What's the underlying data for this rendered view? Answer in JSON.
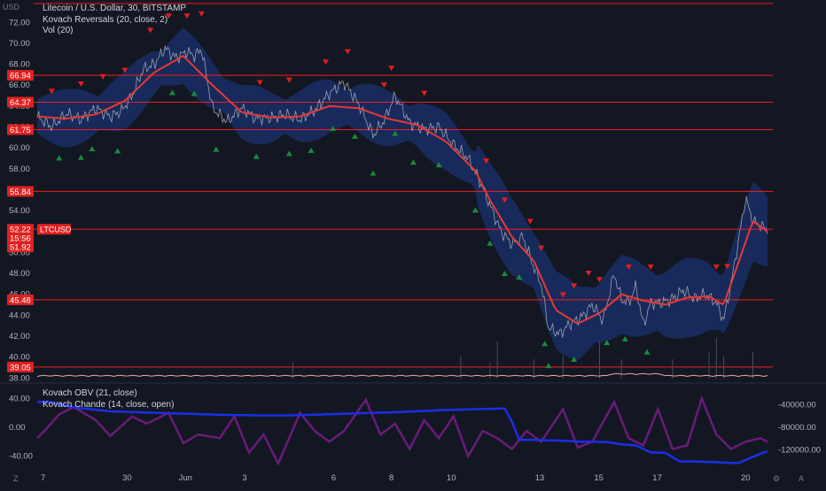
{
  "header": {
    "symbol_line": "Litecoin / U.S. Dollar, 30, BITSTAMP",
    "indicator_1": "Kovach Reversals (20, close, 2)",
    "indicator_2": "Vol (20)"
  },
  "lower_pane": {
    "indicator_1": "Kovach OBV (21, close)",
    "indicator_2": "Kovach Chande (14, close, open)"
  },
  "axis_unit": "USD",
  "corner_left": "Z",
  "corner_mid": "⚙",
  "corner_right": "A",
  "colors": {
    "background": "#131722",
    "price": "#b2b5be",
    "ma": "#e53935",
    "band": "#1e3a8a",
    "level_line": "#f01e1e",
    "up_marker": "#1b8a3c",
    "down_marker": "#e01e1e",
    "obv": "#1b2ee8",
    "chande": "#6a1b7a"
  },
  "chart_data": [
    {
      "type": "line",
      "title": "Litecoin / U.S. Dollar, 30, BITSTAMP",
      "ylabel": "USD",
      "ylim": [
        37.6,
        73.8
      ],
      "y_ticks": [
        38,
        40,
        42,
        44,
        46,
        48,
        50,
        52,
        54,
        56,
        58,
        60,
        62,
        64,
        66,
        68,
        70,
        72
      ],
      "y_tick_labels": [
        "38.00",
        "40.00",
        "42.00",
        "44.00",
        "46.00",
        "48.00",
        "50.00",
        "52.00",
        "54.00",
        "56.00",
        "58.00",
        "60.00",
        "62.00",
        "64.00",
        "66.00",
        "68.00",
        "70.00",
        "72.00"
      ],
      "x_ticks": [
        {
          "label": "7",
          "t": 0.008
        },
        {
          "label": "30",
          "t": 0.123
        },
        {
          "label": "Jun",
          "t": 0.203
        },
        {
          "label": "3",
          "t": 0.284
        },
        {
          "label": "6",
          "t": 0.406
        },
        {
          "label": "8",
          "t": 0.485
        },
        {
          "label": "10",
          "t": 0.567
        },
        {
          "label": "13",
          "t": 0.688
        },
        {
          "label": "15",
          "t": 0.769
        },
        {
          "label": "17",
          "t": 0.849
        },
        {
          "label": "20",
          "t": 0.97
        }
      ],
      "levels": [
        {
          "value": 73.8,
          "label": ""
        },
        {
          "value": 66.94,
          "label": "66.94"
        },
        {
          "value": 64.37,
          "label": "64.37"
        },
        {
          "value": 61.75,
          "label": "61.75"
        },
        {
          "value": 55.84,
          "label": "55.84"
        },
        {
          "value": 45.48,
          "label": "45.48"
        },
        {
          "value": 39.05,
          "label": "39.05"
        }
      ],
      "current_price": {
        "value": "52.22",
        "countdown": "15:56",
        "symbol": "LTCUSD",
        "ma_value": "51.92"
      },
      "series": [
        {
          "name": "Litecoin / U.S. Dollar",
          "x": [
            0.0,
            0.02,
            0.04,
            0.06,
            0.08,
            0.1,
            0.115,
            0.13,
            0.145,
            0.16,
            0.175,
            0.19,
            0.205,
            0.215,
            0.225,
            0.24,
            0.26,
            0.28,
            0.3,
            0.32,
            0.34,
            0.36,
            0.38,
            0.4,
            0.42,
            0.44,
            0.46,
            0.475,
            0.49,
            0.51,
            0.53,
            0.55,
            0.57,
            0.59,
            0.605,
            0.62,
            0.635,
            0.65,
            0.665,
            0.68,
            0.69,
            0.7,
            0.715,
            0.73,
            0.745,
            0.76,
            0.775,
            0.79,
            0.8,
            0.81,
            0.82,
            0.83,
            0.84,
            0.855,
            0.87,
            0.885,
            0.9,
            0.915,
            0.93,
            0.94,
            0.95,
            0.96,
            0.97,
            0.98,
            1.0
          ],
          "y": [
            63.0,
            62.0,
            63.3,
            62.7,
            63.8,
            63.0,
            63.5,
            65.0,
            67.5,
            68.0,
            69.5,
            68.6,
            69.2,
            68.8,
            69.4,
            63.8,
            62.5,
            63.8,
            62.8,
            62.9,
            63.2,
            62.7,
            63.6,
            65.2,
            66.3,
            64.2,
            61.2,
            62.6,
            65.0,
            62.4,
            61.8,
            62.0,
            60.3,
            59.0,
            57.0,
            54.5,
            52.0,
            50.8,
            51.5,
            48.6,
            47.0,
            42.8,
            42.2,
            43.2,
            43.8,
            45.0,
            43.5,
            48.0,
            45.5,
            45.2,
            46.8,
            43.0,
            45.2,
            45.2,
            45.6,
            46.4,
            45.6,
            46.0,
            45.2,
            43.5,
            47.0,
            51.0,
            55.2,
            53.0,
            52.2
          ]
        },
        {
          "name": "Kovach Reversals",
          "x": [
            0.0,
            0.04,
            0.08,
            0.12,
            0.16,
            0.2,
            0.24,
            0.28,
            0.32,
            0.36,
            0.4,
            0.44,
            0.48,
            0.52,
            0.56,
            0.6,
            0.62,
            0.65,
            0.68,
            0.71,
            0.74,
            0.77,
            0.8,
            0.83,
            0.86,
            0.89,
            0.92,
            0.94,
            0.96,
            0.98,
            1.0
          ],
          "y": [
            63.0,
            62.8,
            63.2,
            64.5,
            67.2,
            68.8,
            66.0,
            63.4,
            62.9,
            63.0,
            64.0,
            63.8,
            62.8,
            62.2,
            60.6,
            57.8,
            55.0,
            51.5,
            49.2,
            44.5,
            43.2,
            44.2,
            46.0,
            45.4,
            45.0,
            45.7,
            45.8,
            45.0,
            49.0,
            53.0,
            52.0
          ]
        }
      ],
      "down_markers_t": [
        0.02,
        0.06,
        0.09,
        0.12,
        0.155,
        0.18,
        0.205,
        0.225,
        0.305,
        0.345,
        0.395,
        0.425,
        0.475,
        0.485,
        0.53,
        0.615,
        0.64,
        0.675,
        0.69,
        0.72,
        0.735,
        0.755,
        0.77,
        0.81,
        0.84,
        0.93,
        0.945
      ],
      "up_markers_t": [
        0.03,
        0.06,
        0.075,
        0.11,
        0.185,
        0.215,
        0.245,
        0.3,
        0.345,
        0.375,
        0.405,
        0.435,
        0.46,
        0.49,
        0.515,
        0.55,
        0.6,
        0.62,
        0.64,
        0.66,
        0.695,
        0.7,
        0.735,
        0.78,
        0.805,
        0.835
      ],
      "volume": {
        "name": "Vol (20)",
        "spikes_t": [
          0.35,
          0.58,
          0.62,
          0.63,
          0.68,
          0.72,
          0.77,
          0.8,
          0.87,
          0.92,
          0.93,
          0.94,
          0.98
        ],
        "spikes_h": [
          0.3,
          0.5,
          0.3,
          0.9,
          0.4,
          0.5,
          0.9,
          0.4,
          0.4,
          0.6,
          1.0,
          0.5,
          0.6
        ]
      }
    },
    {
      "type": "line",
      "title": "Kovach OBV (21, close) / Kovach Chande (14, close, open)",
      "ylim_left": [
        -55,
        55
      ],
      "y_ticks_left": [
        40,
        20,
        0,
        -20,
        -40
      ],
      "y_tick_labels_left": [
        "40.00",
        "",
        "0.00",
        "",
        "-40.00"
      ],
      "ylim_right": [
        -150000,
        -10000
      ],
      "y_ticks_right": [
        -40000,
        -80000,
        -120000
      ],
      "y_tick_labels_right": [
        "-40000.00",
        "-80000.00",
        "-120000.00"
      ],
      "series": [
        {
          "name": "Kovach OBV",
          "axis": "right",
          "x": [
            0.0,
            0.02,
            0.05,
            0.1,
            0.15,
            0.2,
            0.25,
            0.3,
            0.35,
            0.4,
            0.45,
            0.5,
            0.55,
            0.6,
            0.64,
            0.65,
            0.66,
            0.68,
            0.7,
            0.72,
            0.74,
            0.78,
            0.8,
            0.82,
            0.84,
            0.86,
            0.88,
            0.9,
            0.92,
            0.94,
            0.96,
            0.98,
            1.0
          ],
          "y": [
            -35000,
            -36000,
            -45000,
            -52000,
            -54000,
            -56000,
            -58000,
            -59000,
            -59000,
            -57000,
            -55000,
            -53000,
            -50000,
            -48000,
            -47000,
            -70000,
            -102000,
            -102000,
            -103000,
            -103500,
            -105000,
            -106000,
            -110000,
            -112000,
            -124000,
            -125000,
            -140000,
            -140000,
            -141000,
            -142000,
            -143000,
            -132000,
            -122000
          ]
        },
        {
          "name": "Kovach Chande",
          "axis": "left",
          "x": [
            0.0,
            0.01,
            0.03,
            0.05,
            0.08,
            0.1,
            0.13,
            0.15,
            0.18,
            0.2,
            0.22,
            0.25,
            0.27,
            0.29,
            0.31,
            0.33,
            0.36,
            0.38,
            0.4,
            0.42,
            0.45,
            0.47,
            0.49,
            0.51,
            0.53,
            0.55,
            0.57,
            0.59,
            0.61,
            0.63,
            0.65,
            0.67,
            0.69,
            0.72,
            0.74,
            0.76,
            0.79,
            0.81,
            0.83,
            0.85,
            0.87,
            0.89,
            0.91,
            0.93,
            0.95,
            0.97,
            0.99,
            1.0
          ],
          "y": [
            -15,
            -5,
            18,
            28,
            10,
            -12,
            15,
            5,
            20,
            -22,
            -10,
            -15,
            15,
            -35,
            -10,
            -50,
            20,
            -5,
            -20,
            -5,
            38,
            -10,
            5,
            -30,
            10,
            -15,
            15,
            -40,
            -5,
            -15,
            -30,
            -5,
            -20,
            25,
            -28,
            -20,
            35,
            -15,
            -25,
            25,
            -30,
            -25,
            40,
            -10,
            -30,
            -20,
            -15,
            -20
          ]
        }
      ]
    }
  ]
}
